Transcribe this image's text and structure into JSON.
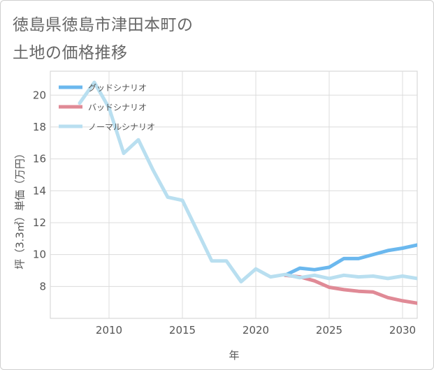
{
  "title_lines": [
    "徳島県徳島市津田本町の",
    "土地の価格推移"
  ],
  "chart_data": {
    "type": "line",
    "xlabel": "年",
    "ylabel": "坪（3.3㎡）単価（万円）",
    "xlim": [
      2006,
      2031
    ],
    "ylim": [
      6,
      21.5
    ],
    "xticks": [
      2010,
      2015,
      2020,
      2025,
      2030
    ],
    "yticks": [
      8,
      10,
      12,
      14,
      16,
      18,
      20
    ],
    "grid": true,
    "legend_position": "top-left",
    "series": [
      {
        "name": "グッドシナリオ",
        "color": "#6bb8ee",
        "x": [
          2022,
          2023,
          2024,
          2025,
          2026,
          2027,
          2028,
          2029,
          2030,
          2031
        ],
        "y": [
          8.7,
          9.15,
          9.05,
          9.2,
          9.75,
          9.75,
          10.0,
          10.25,
          10.4,
          10.6
        ]
      },
      {
        "name": "バッドシナリオ",
        "color": "#e08a96",
        "x": [
          2022,
          2023,
          2024,
          2025,
          2026,
          2027,
          2028,
          2029,
          2030,
          2031
        ],
        "y": [
          8.7,
          8.6,
          8.35,
          7.95,
          7.8,
          7.7,
          7.65,
          7.3,
          7.1,
          6.95
        ]
      },
      {
        "name": "ノーマルシナリオ",
        "color": "#b9dff0",
        "x": [
          2008,
          2009,
          2010,
          2011,
          2012,
          2013,
          2014,
          2015,
          2016,
          2017,
          2018,
          2019,
          2020,
          2021,
          2022,
          2023,
          2024,
          2025,
          2026,
          2027,
          2028,
          2029,
          2030,
          2031
        ],
        "y": [
          19.5,
          20.8,
          19.2,
          16.35,
          17.2,
          15.3,
          13.6,
          13.4,
          11.5,
          9.6,
          9.6,
          8.3,
          9.1,
          8.6,
          8.75,
          8.55,
          8.7,
          8.5,
          8.7,
          8.6,
          8.65,
          8.5,
          8.65,
          8.5
        ]
      }
    ]
  }
}
